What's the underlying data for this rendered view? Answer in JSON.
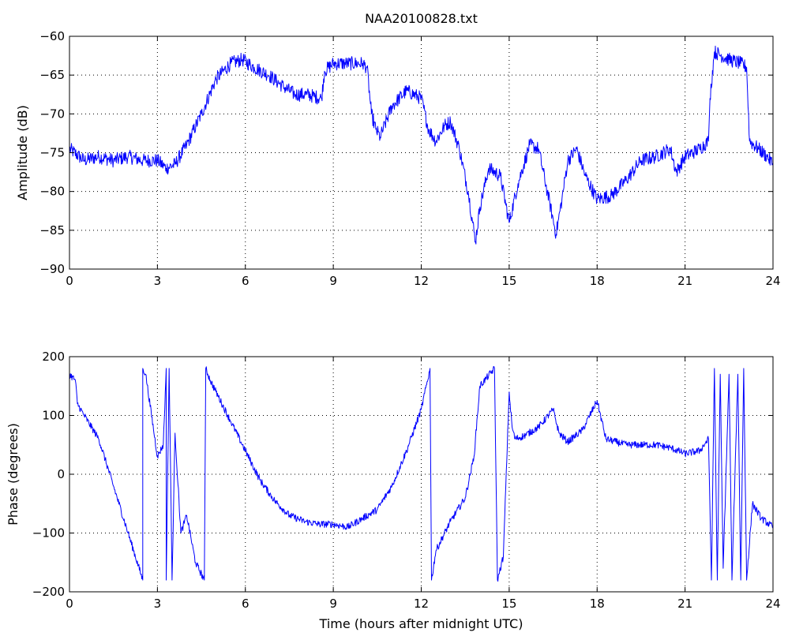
{
  "title": "NAA20100828.txt",
  "colors": {
    "series": "#0000ff",
    "axes": "#000000",
    "background": "#ffffff"
  },
  "chart_data": [
    {
      "id": "amplitude",
      "type": "line",
      "title": "NAA20100828.txt",
      "xlabel": "",
      "ylabel": "Amplitude (dB)",
      "xlim": [
        0,
        24
      ],
      "ylim": [
        -90,
        -60
      ],
      "xticks": [
        0,
        3,
        6,
        9,
        12,
        15,
        18,
        21,
        24
      ],
      "xtick_labels": [
        "0",
        "3",
        "6",
        "9",
        "12",
        "15",
        "18",
        "21",
        "24"
      ],
      "yticks": [
        -90,
        -85,
        -80,
        -75,
        -70,
        -65,
        -60
      ],
      "ytick_labels": [
        "−90",
        "−85",
        "−80",
        "−75",
        "−70",
        "−65",
        "−60"
      ],
      "grid": true,
      "series": [
        {
          "x": [
            0,
            0.5,
            1,
            1.5,
            2,
            2.5,
            3,
            3.3,
            3.6,
            4,
            4.5,
            5,
            5.5,
            5.9,
            6.3,
            6.8,
            7.3,
            7.7,
            8.1,
            8.6,
            8.7,
            9,
            9.5,
            10,
            10.15,
            10.3,
            10.45,
            10.6,
            11,
            11.5,
            12,
            12.25,
            12.5,
            12.8,
            13,
            13.3,
            13.6,
            13.85,
            14,
            14.3,
            14.7,
            15,
            15.3,
            15.7,
            16,
            16.3,
            16.6,
            16.8,
            17,
            17.3,
            17.6,
            18,
            18.5,
            19,
            19.5,
            20,
            20.5,
            20.7,
            21,
            21.5,
            21.8,
            21.85,
            22,
            22.5,
            22.9,
            23.1,
            23.2,
            23.5,
            23.8,
            24
          ],
          "y": [
            -74.5,
            -76,
            -75.5,
            -76,
            -75.5,
            -76,
            -76,
            -77,
            -76.5,
            -74,
            -70,
            -65.5,
            -63.5,
            -63,
            -64,
            -65,
            -66.5,
            -67.5,
            -67.5,
            -68,
            -64.5,
            -63.5,
            -63.5,
            -63.5,
            -64,
            -70,
            -72,
            -73,
            -69,
            -67,
            -68,
            -72,
            -73.5,
            -71.5,
            -71,
            -74.5,
            -80,
            -86.5,
            -82,
            -77,
            -78,
            -84,
            -79,
            -74,
            -74.5,
            -80,
            -85.5,
            -81,
            -76,
            -74.5,
            -78,
            -81,
            -80.5,
            -78.5,
            -76,
            -75.5,
            -74.5,
            -77.5,
            -75.5,
            -74.5,
            -73.5,
            -68,
            -62,
            -63,
            -63.5,
            -64,
            -73.5,
            -74.5,
            -75.5,
            -76.5
          ]
        }
      ]
    },
    {
      "id": "phase",
      "type": "line",
      "title": "",
      "xlabel": "Time (hours after midnight UTC)",
      "ylabel": "Phase (degrees)",
      "xlim": [
        0,
        24
      ],
      "ylim": [
        -200,
        200
      ],
      "xticks": [
        0,
        3,
        6,
        9,
        12,
        15,
        18,
        21,
        24
      ],
      "xtick_labels": [
        "0",
        "3",
        "6",
        "9",
        "12",
        "15",
        "18",
        "21",
        "24"
      ],
      "yticks": [
        -200,
        -100,
        0,
        100,
        200
      ],
      "ytick_labels": [
        "−200",
        "−100",
        "0",
        "100",
        "200"
      ],
      "grid": true,
      "series": [
        {
          "x": [
            0,
            0.2,
            0.27,
            0.5,
            1,
            1.5,
            2,
            2.5,
            2.5,
            2.6,
            3,
            3.2,
            3.3,
            3.3,
            3.4,
            3.5,
            3.6,
            3.8,
            4,
            4.3,
            4.6,
            4.65,
            4.8,
            5,
            5.5,
            6,
            6.5,
            7,
            7.5,
            8,
            8.5,
            9,
            9.5,
            10,
            10.5,
            11,
            11.5,
            12,
            12.3,
            12.35,
            12.5,
            13,
            13.5,
            13.8,
            14,
            14.5,
            14.6,
            14.65,
            14.8,
            15,
            15.1,
            15.2,
            15.5,
            16,
            16.5,
            16.7,
            17,
            17.5,
            18,
            18.3,
            19,
            20,
            20.5,
            21,
            21.5,
            21.8,
            21.9,
            22,
            22.1,
            22.2,
            22.3,
            22.5,
            22.6,
            22.8,
            22.9,
            23,
            23.1,
            23.3,
            23.6,
            24
          ],
          "y": [
            170,
            160,
            120,
            100,
            60,
            -20,
            -100,
            -180,
            180,
            170,
            30,
            50,
            180,
            -180,
            180,
            -180,
            70,
            -100,
            -70,
            -150,
            -180,
            180,
            160,
            140,
            90,
            40,
            -10,
            -45,
            -70,
            -80,
            -85,
            -85,
            -90,
            -75,
            -60,
            -20,
            40,
            110,
            180,
            -180,
            -130,
            -80,
            -40,
            30,
            150,
            180,
            -180,
            -170,
            -140,
            140,
            80,
            60,
            65,
            80,
            110,
            70,
            55,
            75,
            125,
            60,
            50,
            50,
            45,
            35,
            40,
            60,
            -180,
            180,
            -180,
            170,
            -160,
            170,
            -180,
            170,
            -180,
            180,
            -180,
            -50,
            -75,
            -90
          ]
        }
      ]
    }
  ]
}
